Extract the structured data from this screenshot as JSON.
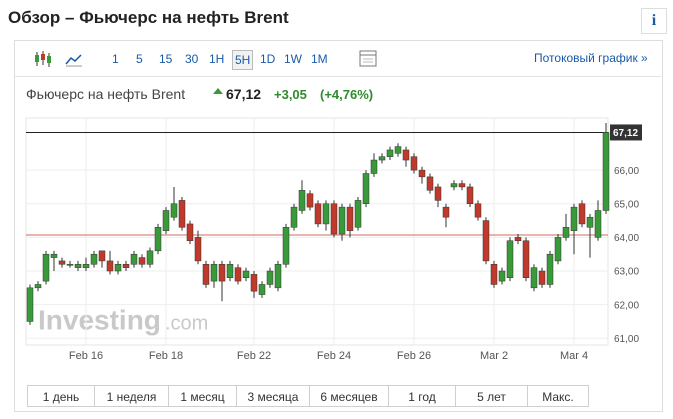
{
  "header": {
    "title": "Обзор – Фьючерс на нефть Brent",
    "info": "i"
  },
  "toolbar": {
    "timeframes": [
      "1",
      "5",
      "15",
      "30",
      "1H",
      "5H",
      "1D",
      "1W",
      "1M"
    ],
    "selected": "5H",
    "stream_link": "Потоковый график »"
  },
  "quote": {
    "name": "Фьючерс на нефть Brent",
    "price": "67,12",
    "change": "+3,05",
    "change_pct": "(+4,76%)"
  },
  "watermark": {
    "brand": "Investing",
    ".com": ".com"
  },
  "chart_data": {
    "type": "candlestick",
    "categories": [
      null,
      null,
      null,
      null,
      null,
      null,
      null,
      "Feb 16",
      null,
      null,
      null,
      null,
      null,
      null,
      null,
      null,
      null,
      "Feb 18",
      null,
      null,
      null,
      null,
      null,
      null,
      null,
      null,
      null,
      null,
      "Feb 22",
      null,
      null,
      null,
      null,
      null,
      null,
      null,
      null,
      null,
      "Feb 24",
      null,
      null,
      null,
      null,
      null,
      null,
      null,
      null,
      null,
      "Feb 26",
      null,
      null,
      null,
      null,
      null,
      null,
      null,
      null,
      null,
      "Mar 2",
      null,
      null,
      null,
      null,
      null,
      null,
      null,
      null,
      null,
      "Mar 4",
      null,
      null,
      null,
      null
    ],
    "open": [
      61.5,
      62.5,
      62.7,
      63.4,
      63.3,
      63.2,
      63.1,
      63.1,
      63.2,
      63.6,
      63.3,
      63.0,
      63.2,
      63.2,
      63.4,
      63.2,
      63.6,
      64.2,
      64.6,
      65.1,
      64.4,
      64.0,
      63.2,
      62.7,
      63.2,
      62.8,
      63.1,
      62.8,
      62.9,
      62.3,
      62.6,
      62.5,
      63.2,
      64.3,
      64.8,
      65.3,
      65.0,
      64.4,
      65.0,
      64.1,
      64.9,
      64.3,
      65.0,
      65.9,
      66.3,
      66.4,
      66.5,
      66.6,
      66.4,
      66.0,
      65.8,
      65.5,
      64.9,
      65.5,
      65.6,
      65.5,
      65.0,
      64.5,
      63.2,
      62.7,
      62.8,
      64.0,
      63.9,
      62.5,
      63.0,
      62.6,
      63.3,
      64.0,
      64.2,
      65.0,
      64.3,
      64.0,
      64.8
    ],
    "high": [
      62.6,
      62.7,
      63.6,
      63.6,
      63.4,
      63.3,
      63.3,
      63.4,
      63.6,
      63.6,
      63.6,
      63.3,
      63.3,
      63.6,
      63.5,
      63.7,
      64.4,
      64.9,
      65.5,
      65.2,
      64.5,
      64.2,
      63.3,
      63.3,
      63.3,
      63.3,
      63.2,
      63.1,
      63.0,
      62.7,
      63.1,
      63.3,
      64.4,
      65.0,
      65.7,
      65.4,
      65.1,
      65.1,
      65.1,
      65.0,
      65.0,
      65.2,
      66.0,
      66.5,
      66.5,
      66.7,
      66.8,
      66.7,
      66.5,
      66.1,
      65.9,
      65.6,
      65.0,
      65.7,
      65.7,
      65.6,
      65.1,
      64.6,
      63.3,
      63.1,
      64.0,
      64.1,
      64.0,
      63.2,
      63.1,
      63.6,
      64.1,
      64.7,
      65.0,
      65.1,
      64.7,
      65.1,
      67.4
    ],
    "low": [
      61.4,
      62.4,
      62.6,
      63.0,
      63.1,
      63.1,
      63.0,
      63.0,
      63.1,
      63.1,
      62.9,
      62.9,
      63.0,
      63.1,
      63.1,
      63.1,
      63.5,
      64.1,
      64.5,
      64.2,
      63.8,
      63.2,
      62.5,
      62.5,
      62.1,
      62.7,
      62.6,
      62.7,
      62.2,
      62.2,
      62.5,
      62.4,
      63.1,
      64.2,
      64.7,
      64.8,
      64.3,
      64.2,
      64.0,
      63.9,
      64.0,
      64.2,
      64.9,
      65.8,
      66.2,
      66.3,
      66.4,
      66.1,
      65.9,
      65.6,
      65.3,
      64.9,
      64.3,
      65.4,
      65.4,
      64.9,
      64.5,
      63.2,
      62.5,
      62.6,
      62.7,
      63.8,
      62.7,
      62.4,
      62.5,
      62.5,
      63.2,
      63.9,
      63.5,
      64.3,
      63.4,
      63.9,
      64.7
    ],
    "close": [
      62.5,
      62.6,
      63.5,
      63.5,
      63.2,
      63.2,
      63.2,
      63.2,
      63.5,
      63.3,
      63.0,
      63.2,
      63.1,
      63.5,
      63.2,
      63.6,
      64.3,
      64.8,
      65.0,
      64.3,
      63.9,
      63.3,
      62.6,
      63.2,
      62.7,
      63.2,
      62.7,
      63.0,
      62.4,
      62.6,
      63.0,
      63.2,
      64.3,
      64.9,
      65.4,
      64.9,
      64.4,
      65.0,
      64.1,
      64.9,
      64.2,
      65.1,
      65.9,
      66.3,
      66.4,
      66.6,
      66.7,
      66.3,
      66.0,
      65.8,
      65.4,
      65.1,
      64.6,
      65.6,
      65.5,
      65.0,
      64.6,
      63.3,
      62.6,
      63.0,
      63.9,
      63.9,
      62.8,
      63.1,
      62.6,
      63.5,
      64.0,
      64.3,
      64.9,
      64.4,
      64.6,
      64.8,
      67.12
    ],
    "up_color": "#3a9a3a",
    "down_color": "#c0392b",
    "ylim": [
      60.8,
      67.55
    ],
    "yticks": [
      {
        "value": 61,
        "label": "61,00"
      },
      {
        "value": 62,
        "label": "62,00"
      },
      {
        "value": 63,
        "label": "63,00"
      },
      {
        "value": 64,
        "label": "64,00"
      },
      {
        "value": 65,
        "label": "65,00"
      },
      {
        "value": 66,
        "label": "66,00"
      }
    ],
    "last_price": {
      "value": 67.12,
      "label": "67,12"
    },
    "prev_close": 64.07,
    "grid": true
  },
  "range_buttons": [
    "1 день",
    "1 неделя",
    "1 месяц",
    "3 месяца",
    "6 месяцев",
    "1 год",
    "5 лет",
    "Макс."
  ]
}
